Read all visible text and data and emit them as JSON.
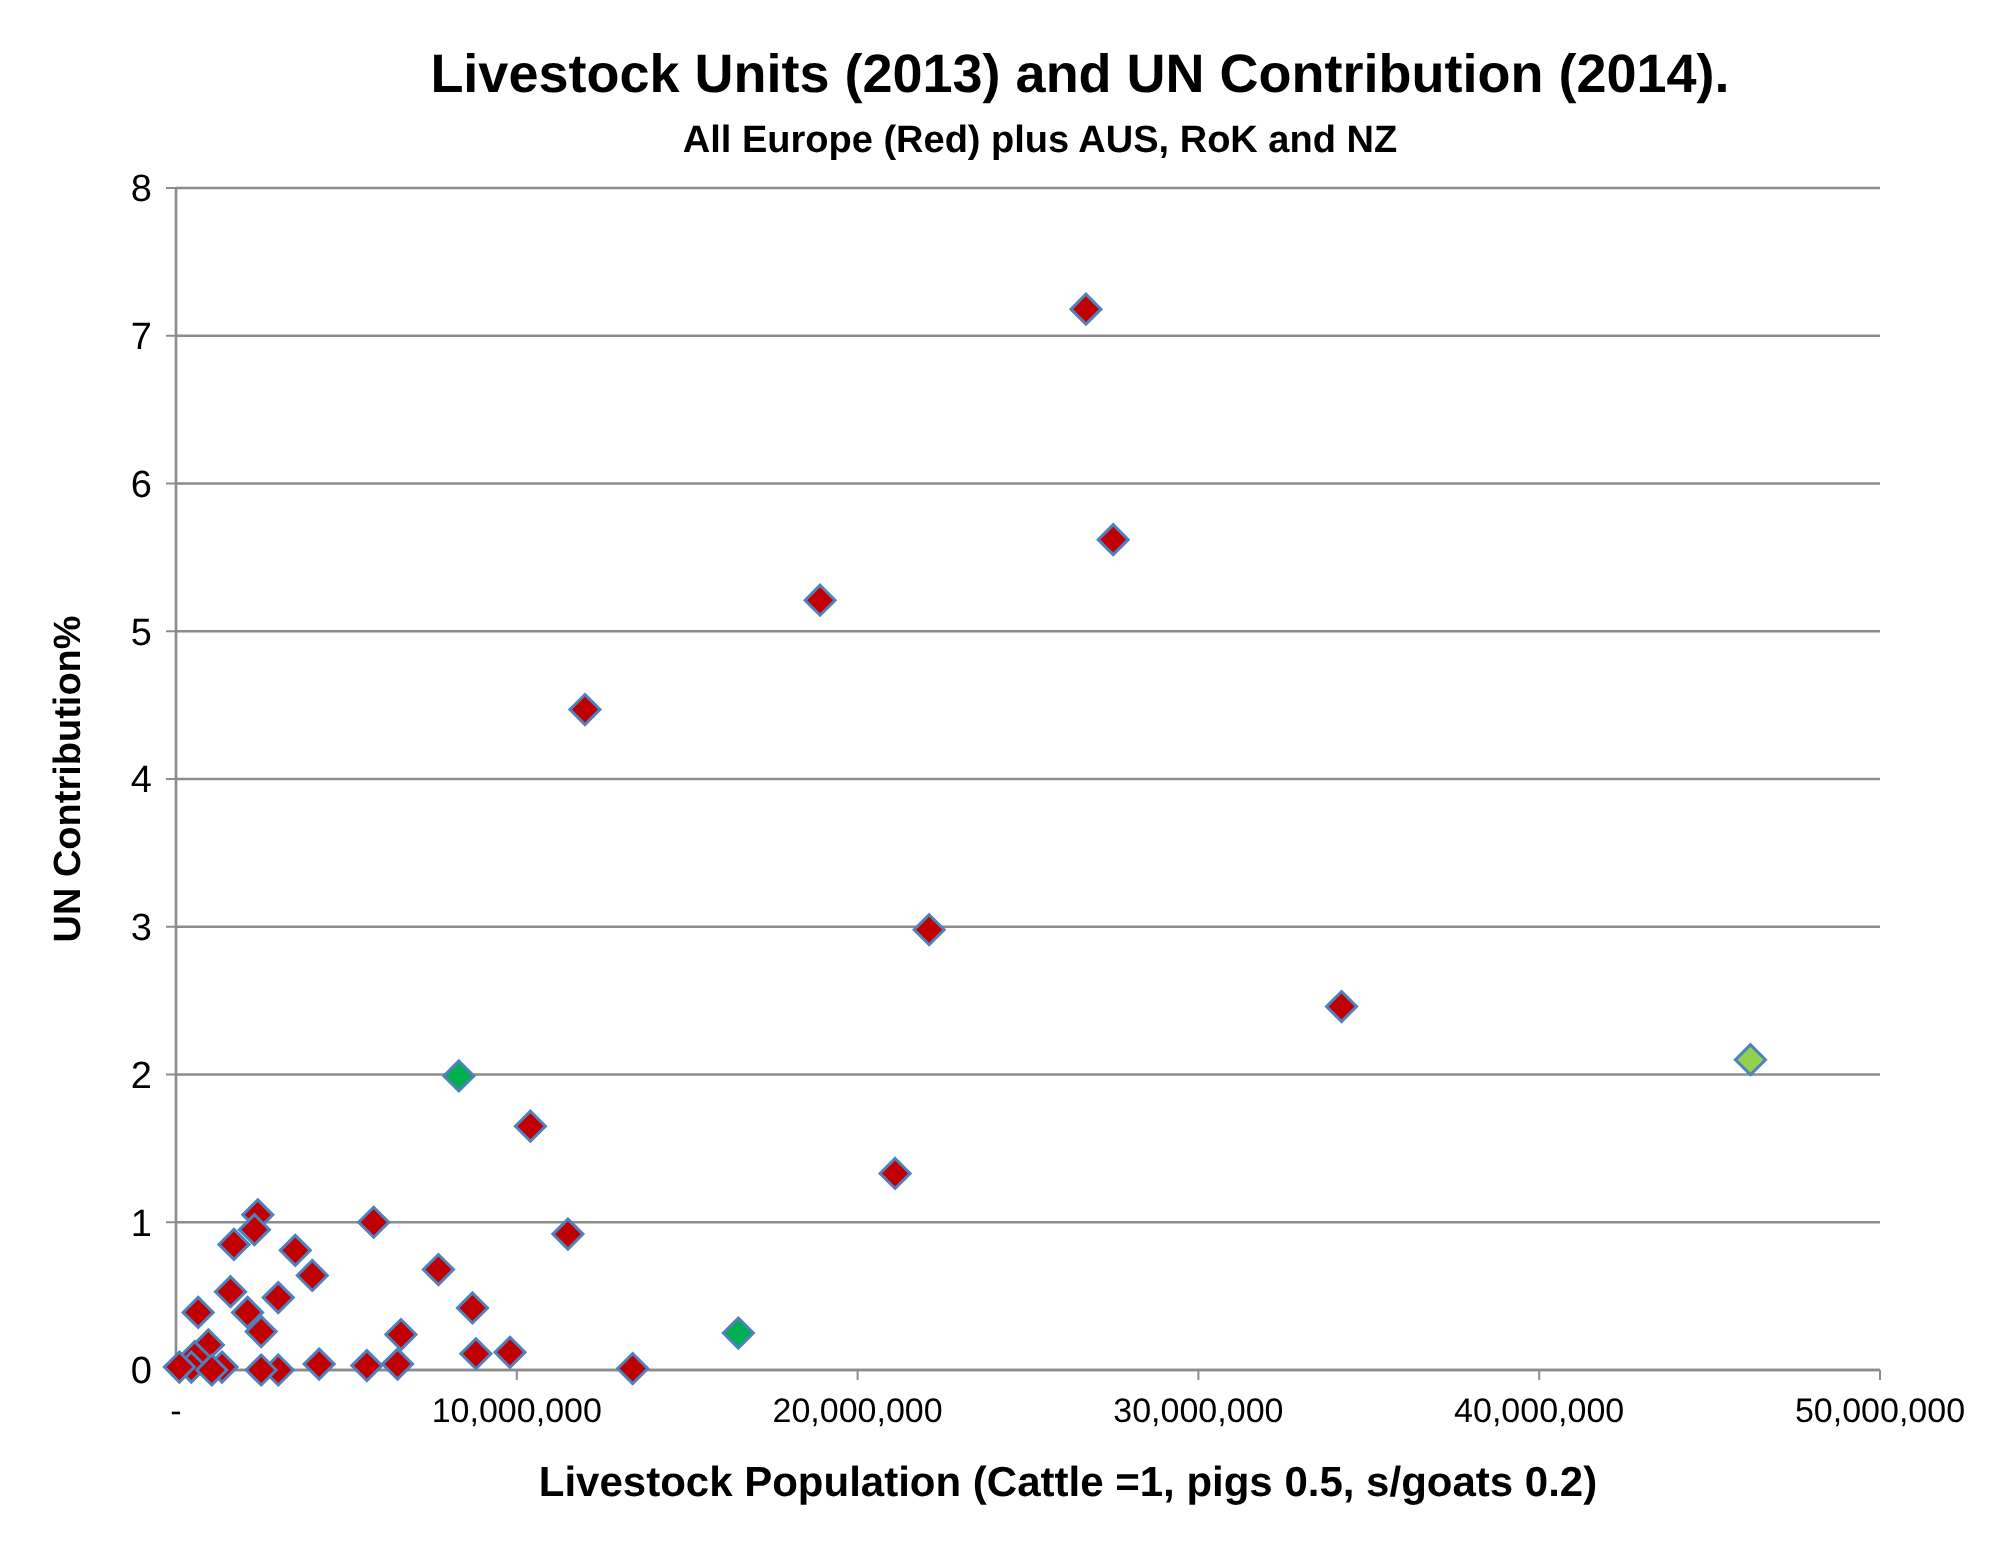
{
  "chart_data": {
    "type": "scatter",
    "title": "Livestock Units (2013) and UN Contribution (2014).",
    "subtitle": "All Europe (Red) plus AUS, RoK and NZ",
    "xlabel": "Livestock Population (Cattle =1, pigs 0.5, s/goats 0.2)",
    "ylabel": "UN Contribution%",
    "xlim": [
      0,
      50000000
    ],
    "ylim": [
      0,
      8
    ],
    "xticks": [
      {
        "value": 0,
        "label": "-"
      },
      {
        "value": 10000000,
        "label": "10,000,000"
      },
      {
        "value": 20000000,
        "label": "20,000,000"
      },
      {
        "value": 30000000,
        "label": "30,000,000"
      },
      {
        "value": 40000000,
        "label": "40,000,000"
      },
      {
        "value": 50000000,
        "label": "50,000,000"
      }
    ],
    "yticks": [
      0,
      1,
      2,
      3,
      4,
      5,
      6,
      7,
      8
    ],
    "grid": "y",
    "marker": "diamond",
    "series": [
      {
        "color": "#c00000",
        "x": [
          2400000,
          2300000,
          1700000,
          5800000,
          3500000,
          4000000,
          7700000,
          11500000,
          1600000,
          650000,
          2100000,
          3000000,
          2500000,
          8700000,
          6600000,
          8800000,
          9800000,
          4200000,
          5600000,
          6500000,
          3000000,
          2500000,
          13400000,
          950000,
          550000,
          450000,
          100000,
          1350000,
          1050000,
          10400000,
          12000000,
          18900000,
          22100000,
          21100000,
          26700000,
          27500000,
          34200000
        ],
        "values": [
          1.05,
          0.95,
          0.85,
          1.0,
          0.81,
          0.64,
          0.68,
          0.92,
          0.53,
          0.39,
          0.39,
          0.49,
          0.26,
          0.42,
          0.24,
          0.11,
          0.12,
          0.04,
          0.03,
          0.04,
          0.0,
          0.0,
          0.01,
          0.17,
          0.09,
          0.02,
          0.02,
          0.02,
          0.0,
          1.65,
          4.47,
          5.21,
          2.98,
          1.33,
          7.18,
          5.62,
          2.46
        ]
      },
      {
        "color": "#00b050",
        "x": [
          8300000,
          16500000
        ],
        "values": [
          1.99,
          0.25
        ]
      },
      {
        "color": "#92d050",
        "x": [
          46200000
        ],
        "values": [
          2.1
        ]
      }
    ]
  }
}
